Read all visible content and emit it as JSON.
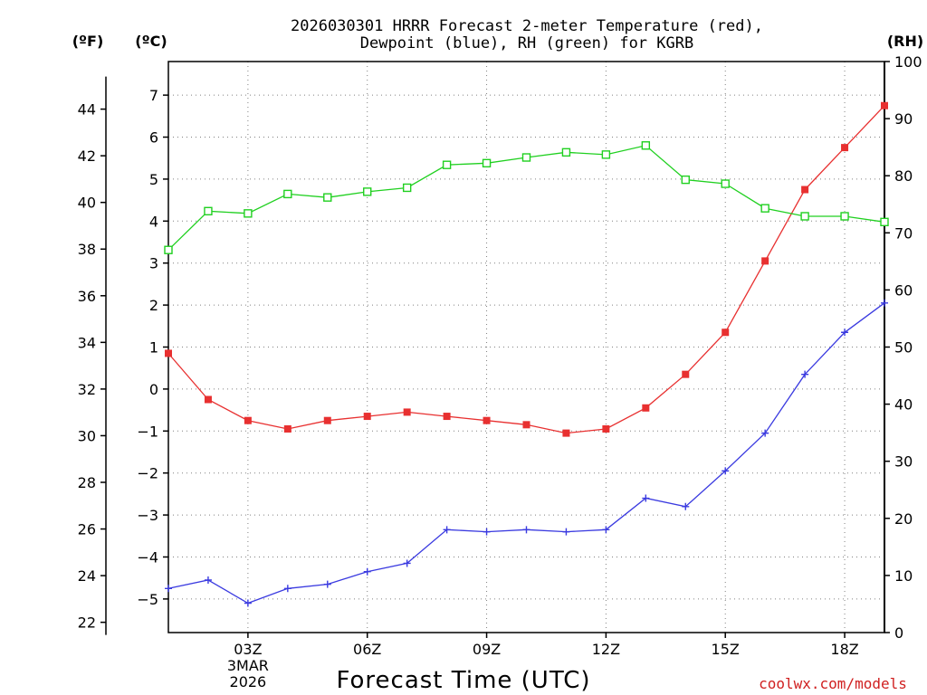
{
  "chart_data": {
    "type": "line",
    "title_lines": [
      "2026030301 HRRR Forecast 2-meter Temperature (red),",
      "Dewpoint (blue), RH (green) for KGRB"
    ],
    "xlabel": "Forecast Time (UTC)",
    "credit": "coolwx.com/models",
    "units": {
      "fahrenheit": "(ºF)",
      "celsius": "(ºC)",
      "rh": "(RH)"
    },
    "x_range": [
      1,
      19
    ],
    "x_ticks": [
      {
        "x": 3,
        "lines": [
          "03Z",
          "3MAR",
          "2026"
        ]
      },
      {
        "x": 6,
        "lines": [
          "06Z"
        ]
      },
      {
        "x": 9,
        "lines": [
          "09Z"
        ]
      },
      {
        "x": 12,
        "lines": [
          "12Z"
        ]
      },
      {
        "x": 15,
        "lines": [
          "15Z"
        ]
      },
      {
        "x": 18,
        "lines": [
          "18Z"
        ]
      }
    ],
    "celsius_axis": {
      "range": [
        -5.8,
        7.8
      ],
      "ticks": [
        -5,
        -4,
        -3,
        -2,
        -1,
        0,
        1,
        2,
        3,
        4,
        5,
        6,
        7
      ]
    },
    "fahrenheit_axis": {
      "ticks": [
        22,
        24,
        26,
        28,
        30,
        32,
        34,
        36,
        38,
        40,
        42,
        44
      ]
    },
    "rh_axis": {
      "range": [
        0,
        100
      ],
      "ticks": [
        0,
        10,
        20,
        30,
        40,
        50,
        60,
        70,
        80,
        90,
        100
      ]
    },
    "series": [
      {
        "name": "Temperature",
        "color": "#e83030",
        "axis": "celsius",
        "marker": "filled-square",
        "x": [
          1,
          2,
          3,
          4,
          5,
          6,
          7,
          8,
          9,
          10,
          11,
          12,
          13,
          14,
          15,
          16,
          17,
          18,
          19
        ],
        "values": [
          0.85,
          -0.25,
          -0.75,
          -0.95,
          -0.75,
          -0.65,
          -0.55,
          -0.65,
          -0.75,
          -0.85,
          -1.05,
          -0.95,
          -0.45,
          0.35,
          1.35,
          3.05,
          4.75,
          5.75,
          6.75
        ]
      },
      {
        "name": "Dewpoint",
        "color": "#3a3ae0",
        "axis": "celsius",
        "marker": "plus",
        "x": [
          1,
          2,
          3,
          4,
          5,
          6,
          7,
          8,
          9,
          10,
          11,
          12,
          13,
          14,
          15,
          16,
          17,
          18,
          19
        ],
        "values": [
          -4.75,
          -4.55,
          -5.1,
          -4.75,
          -4.65,
          -4.35,
          -4.15,
          -3.35,
          -3.4,
          -3.35,
          -3.4,
          -3.35,
          -2.6,
          -2.8,
          -1.95,
          -1.05,
          0.35,
          1.35,
          2.05
        ]
      },
      {
        "name": "Relative Humidity",
        "color": "#20d020",
        "axis": "rh",
        "marker": "open-square",
        "x": [
          1,
          2,
          3,
          4,
          5,
          6,
          7,
          8,
          9,
          10,
          11,
          12,
          13,
          14,
          15,
          16,
          17,
          18,
          19
        ],
        "values": [
          67,
          73.8,
          73.4,
          76.8,
          76.2,
          77.2,
          77.9,
          81.9,
          82.2,
          83.2,
          84.1,
          83.7,
          85.3,
          79.3,
          78.6,
          74.3,
          72.9,
          72.9,
          71.9
        ]
      }
    ]
  }
}
